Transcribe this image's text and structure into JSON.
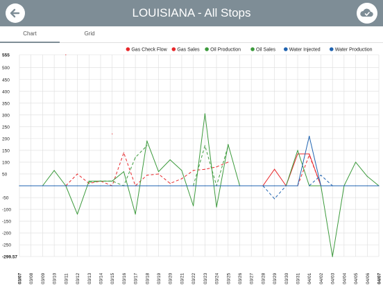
{
  "header": {
    "title": "LOUISIANA - All Stops",
    "back_icon": "arrow-left-icon",
    "cloud_icon": "cloud-check-icon"
  },
  "tabs": [
    {
      "label": "Chart"
    },
    {
      "label": "Grid"
    }
  ],
  "colors": {
    "header": "#7e8d96",
    "red": "#e8272a",
    "green": "#3c9a3c",
    "blue": "#1f63b0",
    "grid": "#dcdcdc"
  },
  "chart_data": {
    "type": "line",
    "title": "",
    "xlabel": "",
    "ylabel": "",
    "legend_position": "top-right",
    "grid": true,
    "ylim": [
      -299.57,
      555
    ],
    "y_ticks": [
      555,
      500,
      450,
      400,
      350,
      300,
      250,
      200,
      150,
      100,
      50,
      0,
      -50,
      -100,
      -150,
      -200,
      -250,
      -299.57
    ],
    "y_tick_labels": [
      "555",
      "500",
      "450",
      "400",
      "350",
      "300",
      "250",
      "200",
      "150",
      "100",
      "50",
      "",
      "-50",
      "-100",
      "-150",
      "-200",
      "-250",
      "-299.57"
    ],
    "categories": [
      "03/07",
      "03/08",
      "03/09",
      "03/10",
      "03/11",
      "03/12",
      "03/13",
      "03/14",
      "03/15",
      "03/16",
      "03/17",
      "03/18",
      "03/19",
      "03/20",
      "03/21",
      "03/22",
      "03/23",
      "03/24",
      "03/25",
      "03/26",
      "03/27",
      "03/28",
      "03/29",
      "03/30",
      "03/31",
      "04/01",
      "04/02",
      "04/03",
      "04/04",
      "04/05",
      "04/06",
      "04/07"
    ],
    "series": [
      {
        "name": "Gas Check Flow",
        "color": "#e8272a",
        "dashed": false,
        "values": [
          null,
          null,
          null,
          null,
          555,
          null,
          null,
          null,
          220,
          null,
          null,
          null,
          null,
          null,
          null,
          null,
          null,
          null,
          null,
          null,
          null,
          0,
          70,
          0,
          135,
          135,
          0,
          null,
          null,
          null,
          null,
          null
        ]
      },
      {
        "name": "Gas Sales",
        "color": "#e8272a",
        "dashed": true,
        "values": [
          null,
          null,
          null,
          null,
          0,
          50,
          10,
          20,
          0,
          140,
          0,
          45,
          50,
          10,
          30,
          65,
          70,
          80,
          100,
          null,
          null,
          null,
          null,
          null,
          0,
          130,
          0,
          null,
          null,
          null,
          null,
          null
        ]
      },
      {
        "name": "Oil Production",
        "color": "#3c9a3c",
        "dashed": false,
        "values": [
          null,
          null,
          0,
          65,
          0,
          -120,
          20,
          20,
          20,
          60,
          -120,
          190,
          60,
          110,
          65,
          -85,
          305,
          -90,
          175,
          0,
          null,
          null,
          null,
          0,
          150,
          0,
          0,
          -300,
          0,
          100,
          40,
          0
        ]
      },
      {
        "name": "Oil Sales",
        "color": "#3c9a3c",
        "dashed": true,
        "values": [
          null,
          null,
          null,
          null,
          null,
          null,
          15,
          20,
          20,
          0,
          120,
          170,
          null,
          null,
          null,
          0,
          170,
          0,
          170,
          null,
          null,
          null,
          null,
          null,
          null,
          null,
          null,
          null,
          null,
          null,
          null,
          null
        ]
      },
      {
        "name": "Water Injected",
        "color": "#1f63b0",
        "dashed": true,
        "values": [
          null,
          null,
          null,
          null,
          null,
          null,
          null,
          null,
          null,
          null,
          null,
          null,
          null,
          null,
          null,
          null,
          null,
          null,
          null,
          null,
          null,
          0,
          -55,
          0,
          null,
          0,
          45,
          0,
          null,
          null,
          null,
          null
        ]
      },
      {
        "name": "Water Production",
        "color": "#1f63b0",
        "dashed": false,
        "values": [
          0,
          0,
          0,
          0,
          0,
          0,
          0,
          0,
          0,
          0,
          0,
          0,
          0,
          0,
          0,
          0,
          0,
          0,
          0,
          0,
          0,
          0,
          0,
          0,
          0,
          210,
          0,
          0,
          0,
          0,
          0,
          0
        ]
      }
    ]
  }
}
